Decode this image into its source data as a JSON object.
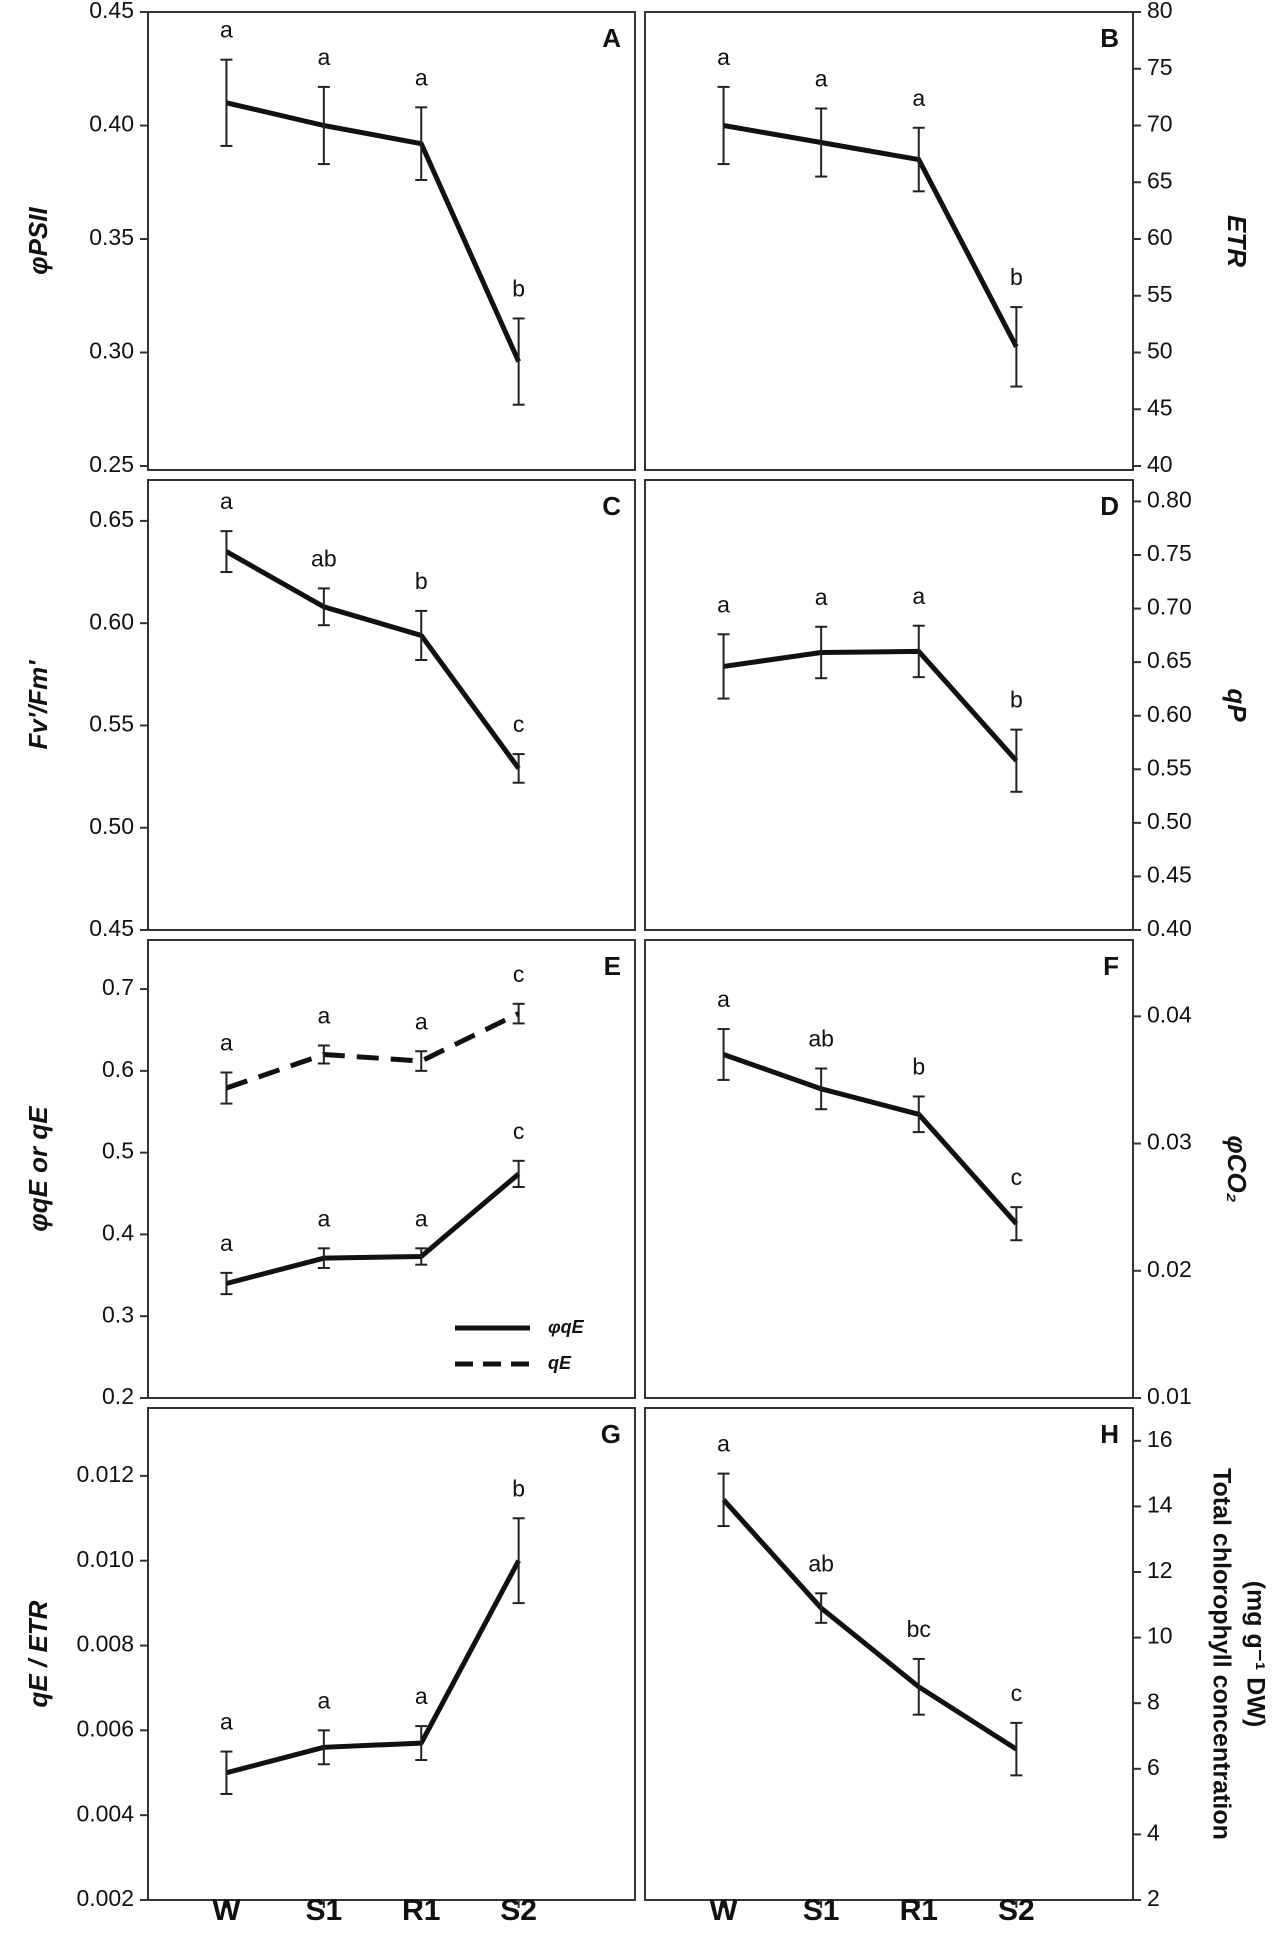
{
  "chart_data": [
    {
      "panel": "A",
      "type": "line",
      "categories": [
        "W",
        "S1",
        "R1",
        "S2"
      ],
      "ylabel": "φPSII",
      "ylim": [
        0.25,
        0.45
      ],
      "yticks": [
        "0.25",
        "0.30",
        "0.35",
        "0.40",
        "0.45"
      ],
      "series": [
        {
          "name": "φPSII",
          "values": [
            0.41,
            0.4,
            0.392,
            0.296
          ],
          "errors": [
            0.019,
            0.017,
            0.016,
            0.019
          ],
          "letters": [
            "a",
            "a",
            "a",
            "b"
          ],
          "dashed": false
        }
      ]
    },
    {
      "panel": "B",
      "type": "line",
      "categories": [
        "W",
        "S1",
        "R1",
        "S2"
      ],
      "ylabel": "ETR",
      "ylim": [
        40,
        80
      ],
      "yticks": [
        "40",
        "45",
        "50",
        "55",
        "60",
        "65",
        "70",
        "75",
        "80"
      ],
      "series": [
        {
          "name": "ETR",
          "values": [
            70.0,
            68.5,
            67.0,
            50.5
          ],
          "errors": [
            3.4,
            3.0,
            2.8,
            3.5
          ],
          "letters": [
            "a",
            "a",
            "a",
            "b"
          ],
          "dashed": false
        }
      ]
    },
    {
      "panel": "C",
      "type": "line",
      "categories": [
        "W",
        "S1",
        "R1",
        "S2"
      ],
      "ylabel": "Fv'/Fm'",
      "ylim": [
        0.45,
        0.67
      ],
      "yticks": [
        "0.45",
        "0.50",
        "0.55",
        "0.60",
        "0.65"
      ],
      "series": [
        {
          "name": "Fv'/Fm'",
          "values": [
            0.635,
            0.608,
            0.594,
            0.529
          ],
          "errors": [
            0.01,
            0.009,
            0.012,
            0.007
          ],
          "letters": [
            "a",
            "ab",
            "b",
            "c"
          ],
          "dashed": false
        }
      ]
    },
    {
      "panel": "D",
      "type": "line",
      "categories": [
        "W",
        "S1",
        "R1",
        "S2"
      ],
      "ylabel": "qP",
      "ylim": [
        0.4,
        0.82
      ],
      "yticks": [
        "0.40",
        "0.45",
        "0.50",
        "0.55",
        "0.60",
        "0.65",
        "0.70",
        "0.75",
        "0.80"
      ],
      "series": [
        {
          "name": "qP",
          "values": [
            0.646,
            0.659,
            0.66,
            0.558
          ],
          "errors": [
            0.03,
            0.024,
            0.024,
            0.029
          ],
          "letters": [
            "a",
            "a",
            "a",
            "b"
          ],
          "dashed": false
        }
      ]
    },
    {
      "panel": "E",
      "type": "line",
      "categories": [
        "W",
        "S1",
        "R1",
        "S2"
      ],
      "ylabel": "φqE  or qE",
      "ylim": [
        0.2,
        0.76
      ],
      "yticks": [
        "0.2",
        "0.3",
        "0.4",
        "0.5",
        "0.6",
        "0.7"
      ],
      "legend": [
        "φqE",
        "qE"
      ],
      "series": [
        {
          "name": "φqE",
          "values": [
            0.34,
            0.371,
            0.373,
            0.474
          ],
          "errors": [
            0.013,
            0.012,
            0.01,
            0.016
          ],
          "letters": [
            "a",
            "a",
            "a",
            "c"
          ],
          "dashed": false
        },
        {
          "name": "qE",
          "values": [
            0.579,
            0.62,
            0.612,
            0.67
          ],
          "errors": [
            0.019,
            0.011,
            0.012,
            0.012
          ],
          "letters": [
            "a",
            "a",
            "a",
            "c"
          ],
          "dashed": true
        }
      ]
    },
    {
      "panel": "F",
      "type": "line",
      "categories": [
        "W",
        "S1",
        "R1",
        "S2"
      ],
      "ylabel": "φCO₂",
      "ylim": [
        0.01,
        0.046
      ],
      "yticks": [
        "0.01",
        "0.02",
        "0.03",
        "0.04"
      ],
      "series": [
        {
          "name": "φCO₂",
          "values": [
            0.037,
            0.0343,
            0.0323,
            0.0237
          ],
          "errors": [
            0.002,
            0.0016,
            0.0014,
            0.0013
          ],
          "letters": [
            "a",
            "ab",
            "b",
            "c"
          ],
          "dashed": false
        }
      ]
    },
    {
      "panel": "G",
      "type": "line",
      "categories": [
        "W",
        "S1",
        "R1",
        "S2"
      ],
      "ylabel": "qE / ETR",
      "ylim": [
        0.002,
        0.0136
      ],
      "yticks": [
        "0.002",
        "0.004",
        "0.006",
        "0.008",
        "0.010",
        "0.012"
      ],
      "series": [
        {
          "name": "qE / ETR",
          "values": [
            0.005,
            0.0056,
            0.0057,
            0.01
          ],
          "errors": [
            0.0005,
            0.0004,
            0.0004,
            0.001
          ],
          "letters": [
            "a",
            "a",
            "a",
            "b"
          ],
          "dashed": false
        }
      ]
    },
    {
      "panel": "H",
      "type": "line",
      "categories": [
        "W",
        "S1",
        "R1",
        "S2"
      ],
      "ylabel_lines": [
        "Total chlorophyll concentration",
        "(mg g⁻¹ DW)"
      ],
      "ylim": [
        2,
        17
      ],
      "yticks": [
        "2",
        "4",
        "6",
        "8",
        "10",
        "12",
        "14",
        "16"
      ],
      "series": [
        {
          "name": "Total chlorophyll",
          "values": [
            14.2,
            10.9,
            8.5,
            6.6
          ],
          "errors": [
            0.8,
            0.45,
            0.85,
            0.8
          ],
          "letters": [
            "a",
            "ab",
            "bc",
            "c"
          ],
          "dashed": false
        }
      ]
    }
  ]
}
